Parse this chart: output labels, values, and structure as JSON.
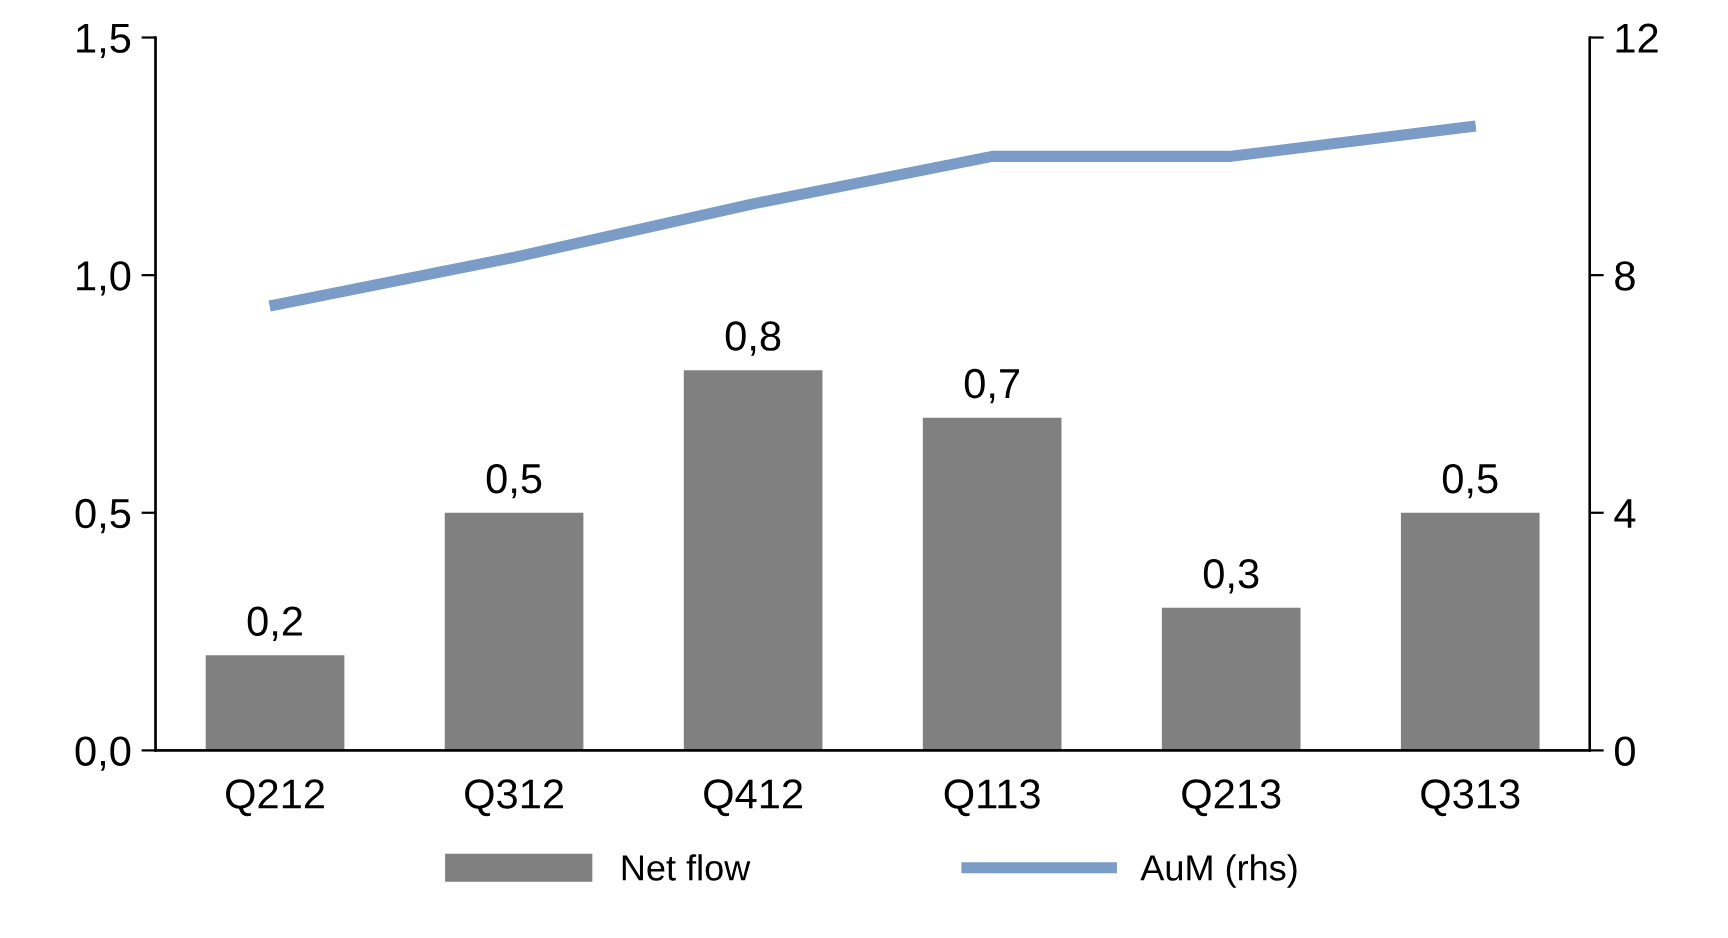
{
  "chart_data": {
    "type": "bar",
    "categories": [
      "Q212",
      "Q312",
      "Q412",
      "Q113",
      "Q213",
      "Q313"
    ],
    "series": [
      {
        "name": "Net flow",
        "color": "#808080",
        "values": [
          0.2,
          0.5,
          0.8,
          0.7,
          0.3,
          0.5
        ],
        "value_labels": [
          "0,2",
          "0,5",
          "0,8",
          "0,7",
          "0,3",
          "0,5"
        ]
      },
      {
        "name": "AuM (rhs)",
        "type": "line",
        "axis": "y2",
        "color": "#7a9cc6",
        "values": [
          7.5,
          8.3,
          9.2,
          10.0,
          10.0,
          10.5
        ]
      }
    ],
    "ylim": [
      0,
      1.5
    ],
    "yticks": [
      {
        "value": 0,
        "label": "0,0"
      },
      {
        "value": 0.5,
        "label": "0,5"
      },
      {
        "value": 1.0,
        "label": "1,0"
      },
      {
        "value": 1.5,
        "label": "1,5"
      }
    ],
    "y2lim": [
      0,
      12
    ],
    "y2ticks": [
      0,
      4,
      8,
      12
    ],
    "grid": false,
    "legend": "bottom",
    "marker": "none",
    "line_style": "solid"
  }
}
